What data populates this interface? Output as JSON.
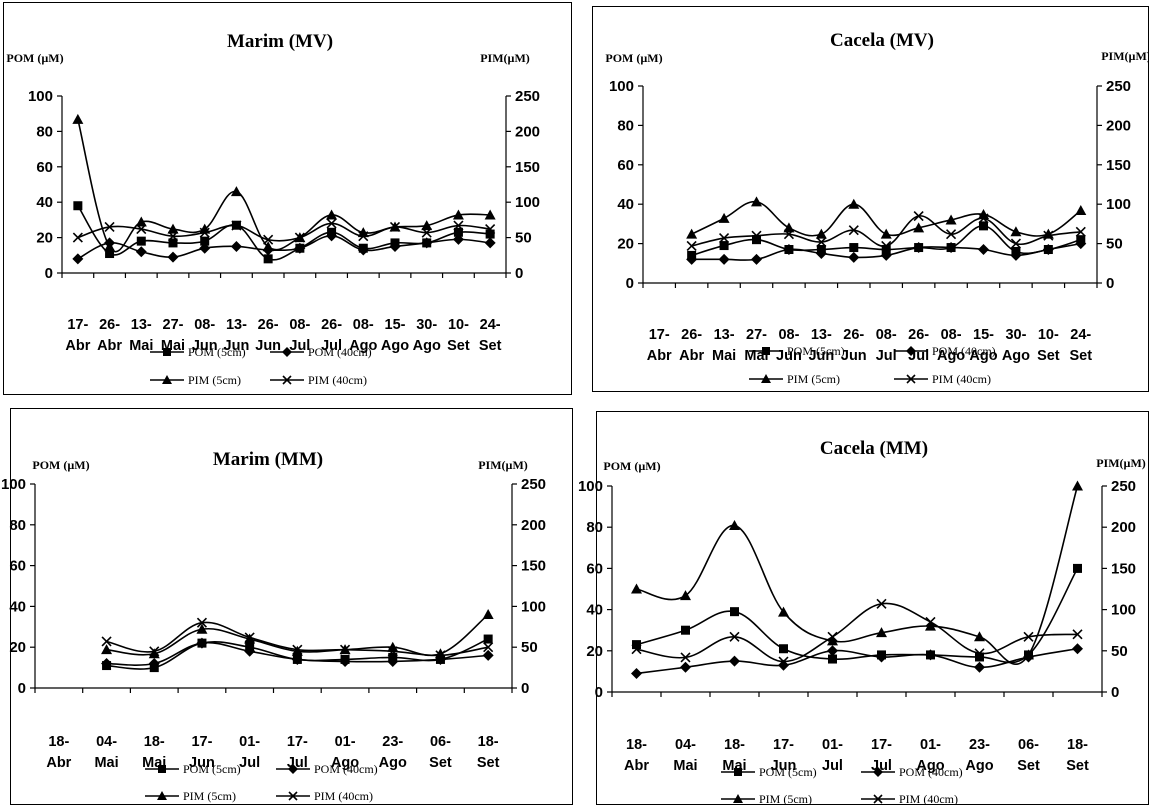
{
  "figure": {
    "series_styles": [
      {
        "name": "POM (5cm)",
        "marker": "square",
        "axis": "left"
      },
      {
        "name": "POM (40cm)",
        "marker": "diamond",
        "axis": "left"
      },
      {
        "name": "PIM (5cm)",
        "marker": "triangle",
        "axis": "right"
      },
      {
        "name": "PIM (40cm)",
        "marker": "x",
        "axis": "right"
      }
    ],
    "line_color": "#000000"
  },
  "chart_data": [
    {
      "type": "line",
      "title": "Marim (MV)",
      "ylabel": "POM (µM)",
      "y2label": "PIM(µM)",
      "ylim": [
        0,
        100
      ],
      "y2lim": [
        0,
        250
      ],
      "yticks": [
        "0",
        "20",
        "40",
        "60",
        "80",
        "100"
      ],
      "y2ticks": [
        "0",
        "50",
        "100",
        "150",
        "200",
        "250"
      ],
      "categories": [
        [
          "17-",
          "Abr"
        ],
        [
          "26-",
          "Abr"
        ],
        [
          "13-",
          "Mai"
        ],
        [
          "27-",
          "Mai"
        ],
        [
          "08-",
          "Jun"
        ],
        [
          "13-",
          "Jun"
        ],
        [
          "26-",
          "Jun"
        ],
        [
          "08-",
          "Jul"
        ],
        [
          "26-",
          "Jul"
        ],
        [
          "08-",
          "Ago"
        ],
        [
          "15-",
          "Ago"
        ],
        [
          "30-",
          "Ago"
        ],
        [
          "10-",
          "Set"
        ],
        [
          "24-",
          "Set"
        ]
      ],
      "legend_position": "bottom",
      "series": [
        {
          "name": "POM (5cm)",
          "values": [
            38,
            11,
            18,
            17,
            18,
            27,
            8,
            14,
            23,
            14,
            17,
            17,
            23,
            22
          ]
        },
        {
          "name": "POM (40cm)",
          "values": [
            8,
            17,
            12,
            9,
            14,
            15,
            13,
            14,
            21,
            13,
            15,
            17,
            19,
            17
          ]
        },
        {
          "name": "PIM (5cm)",
          "values": [
            217,
            37,
            72,
            62,
            62,
            115,
            37,
            50,
            82,
            57,
            65,
            67,
            82,
            82
          ]
        },
        {
          "name": "PIM (40cm)",
          "values": [
            50,
            65,
            62,
            52,
            57,
            67,
            47,
            50,
            70,
            52,
            65,
            57,
            67,
            62
          ]
        }
      ]
    },
    {
      "type": "line",
      "title": "Cacela (MV)",
      "ylabel": "POM (µM)",
      "y2label": "PIM(µM)",
      "ylim": [
        0,
        100
      ],
      "y2lim": [
        0,
        250
      ],
      "yticks": [
        "0",
        "20",
        "40",
        "60",
        "80",
        "100"
      ],
      "y2ticks": [
        "0",
        "50",
        "100",
        "150",
        "200",
        "250"
      ],
      "categories": [
        [
          "17-",
          "Abr"
        ],
        [
          "26-",
          "Abr"
        ],
        [
          "13-",
          "Mai"
        ],
        [
          "27-",
          "Mai"
        ],
        [
          "08-",
          "Jun"
        ],
        [
          "13-",
          "Jun"
        ],
        [
          "26-",
          "Jun"
        ],
        [
          "08-",
          "Jul"
        ],
        [
          "26-",
          "Jul"
        ],
        [
          "08-",
          "Ago"
        ],
        [
          "15-",
          "Ago"
        ],
        [
          "30-",
          "Ago"
        ],
        [
          "10-",
          "Set"
        ],
        [
          "24-",
          "Set"
        ]
      ],
      "legend_position": "bottom",
      "series": [
        {
          "name": "POM (5cm)",
          "values": [
            null,
            14,
            19,
            22,
            17,
            17,
            18,
            17,
            18,
            18,
            29,
            16,
            17,
            22
          ]
        },
        {
          "name": "POM (40cm)",
          "values": [
            null,
            12,
            12,
            12,
            17,
            15,
            13,
            14,
            18,
            18,
            17,
            14,
            17,
            20
          ]
        },
        {
          "name": "PIM (5cm)",
          "values": [
            null,
            62,
            82,
            103,
            70,
            62,
            100,
            62,
            70,
            80,
            87,
            65,
            62,
            92
          ]
        },
        {
          "name": "PIM (40cm)",
          "values": [
            null,
            47,
            57,
            60,
            62,
            52,
            67,
            47,
            85,
            62,
            82,
            50,
            60,
            65
          ]
        }
      ]
    },
    {
      "type": "line",
      "title": "Marim (MM)",
      "ylabel": "POM (µM)",
      "y2label": "PIM(µM)",
      "ylim": [
        0,
        100
      ],
      "y2lim": [
        0,
        250
      ],
      "yticks": [
        "0",
        "20",
        "40",
        "60",
        "80",
        "100"
      ],
      "y2ticks": [
        "0",
        "50",
        "100",
        "150",
        "200",
        "250"
      ],
      "categories": [
        [
          "18-",
          "Abr"
        ],
        [
          "04-",
          "Mai"
        ],
        [
          "18-",
          "Mai"
        ],
        [
          "17-",
          "Jun"
        ],
        [
          "01-",
          "Jul"
        ],
        [
          "17-",
          "Jul"
        ],
        [
          "01-",
          "Ago"
        ],
        [
          "23-",
          "Ago"
        ],
        [
          "06-",
          "Set"
        ],
        [
          "18-",
          "Set"
        ]
      ],
      "legend_position": "bottom",
      "series": [
        {
          "name": "POM (5cm)",
          "values": [
            null,
            11,
            10,
            22,
            20,
            14,
            14,
            15,
            14,
            24
          ]
        },
        {
          "name": "POM (40cm)",
          "values": [
            null,
            12,
            12,
            22,
            18,
            14,
            13,
            13,
            14,
            16
          ]
        },
        {
          "name": "PIM (5cm)",
          "values": [
            null,
            47,
            42,
            72,
            60,
            45,
            47,
            50,
            42,
            90
          ]
        },
        {
          "name": "PIM (40cm)",
          "values": [
            null,
            57,
            45,
            80,
            62,
            47,
            47,
            45,
            40,
            50
          ]
        }
      ]
    },
    {
      "type": "line",
      "title": "Cacela (MM)",
      "ylabel": "POM (µM)",
      "y2label": "PIM(µM)",
      "ylim": [
        0,
        100
      ],
      "y2lim": [
        0,
        250
      ],
      "yticks": [
        "0",
        "20",
        "40",
        "60",
        "80",
        "100"
      ],
      "y2ticks": [
        "0",
        "50",
        "100",
        "150",
        "200",
        "250"
      ],
      "categories": [
        [
          "18-",
          "Abr"
        ],
        [
          "04-",
          "Mai"
        ],
        [
          "18-",
          "Mai"
        ],
        [
          "17-",
          "Jun"
        ],
        [
          "01-",
          "Jul"
        ],
        [
          "17-",
          "Jul"
        ],
        [
          "01-",
          "Ago"
        ],
        [
          "23-",
          "Ago"
        ],
        [
          "06-",
          "Set"
        ],
        [
          "18-",
          "Set"
        ]
      ],
      "legend_position": "bottom",
      "series": [
        {
          "name": "POM (5cm)",
          "values": [
            23,
            30,
            39,
            21,
            16,
            18,
            18,
            17,
            18,
            60
          ]
        },
        {
          "name": "POM (40cm)",
          "values": [
            9,
            12,
            15,
            13,
            20,
            17,
            18,
            12,
            17,
            21
          ]
        },
        {
          "name": "PIM (5cm)",
          "values": [
            125,
            117,
            202,
            97,
            62,
            72,
            80,
            67,
            45,
            250
          ]
        },
        {
          "name": "PIM (40cm)",
          "values": [
            52,
            42,
            67,
            37,
            67,
            107,
            85,
            47,
            67,
            70
          ]
        }
      ]
    }
  ]
}
